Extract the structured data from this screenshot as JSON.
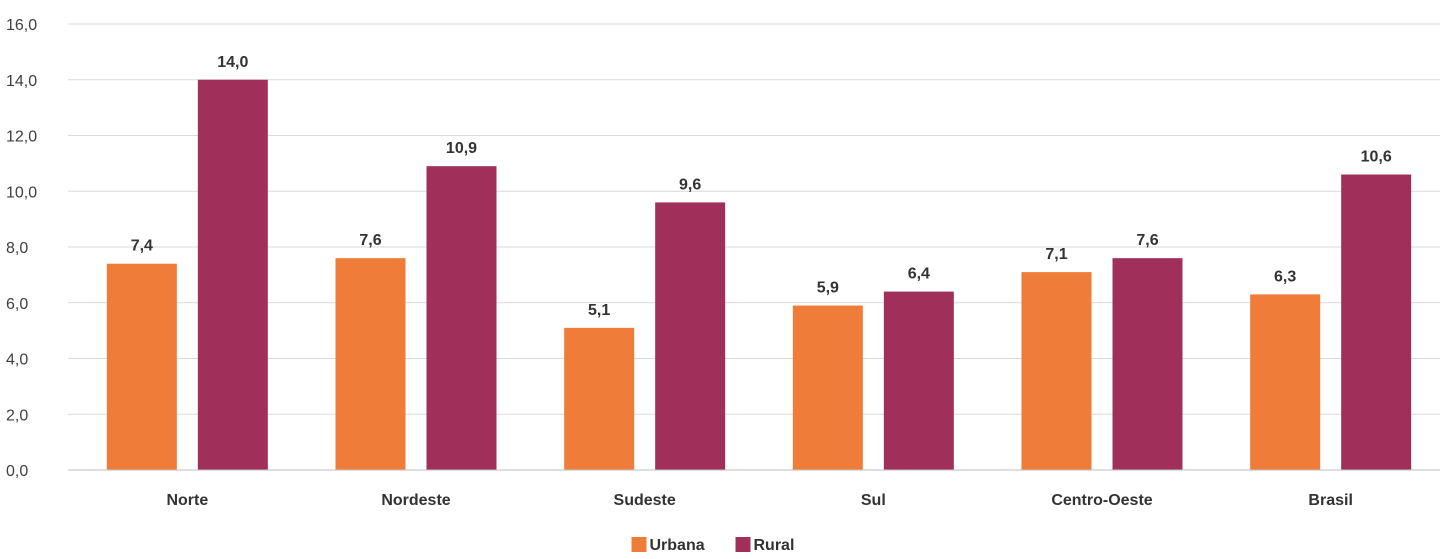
{
  "chart_data": {
    "type": "bar",
    "categories": [
      "Norte",
      "Nordeste",
      "Sudeste",
      "Sul",
      "Centro-Oeste",
      "Brasil"
    ],
    "series": [
      {
        "name": "Urbana",
        "values": [
          7.4,
          7.6,
          5.1,
          5.9,
          7.1,
          6.3
        ],
        "value_labels": [
          "7,4",
          "7,6",
          "5,1",
          "5,9",
          "7,1",
          "6,3"
        ],
        "color": "#f07c3a"
      },
      {
        "name": "Rural",
        "values": [
          14.0,
          10.9,
          9.6,
          6.4,
          7.6,
          10.6
        ],
        "value_labels": [
          "14,0",
          "10,9",
          "9,6",
          "6,4",
          "7,6",
          "10,6"
        ],
        "color": "#a0305a"
      }
    ],
    "y_ticks": [
      0,
      2,
      4,
      6,
      8,
      10,
      12,
      14,
      16
    ],
    "y_tick_labels": [
      "0,0",
      "2,0",
      "4,0",
      "6,0",
      "8,0",
      "10,0",
      "12,0",
      "14,0",
      "16,0"
    ],
    "ylim": [
      0,
      16
    ],
    "grid": true,
    "legend_position": "bottom-center"
  }
}
